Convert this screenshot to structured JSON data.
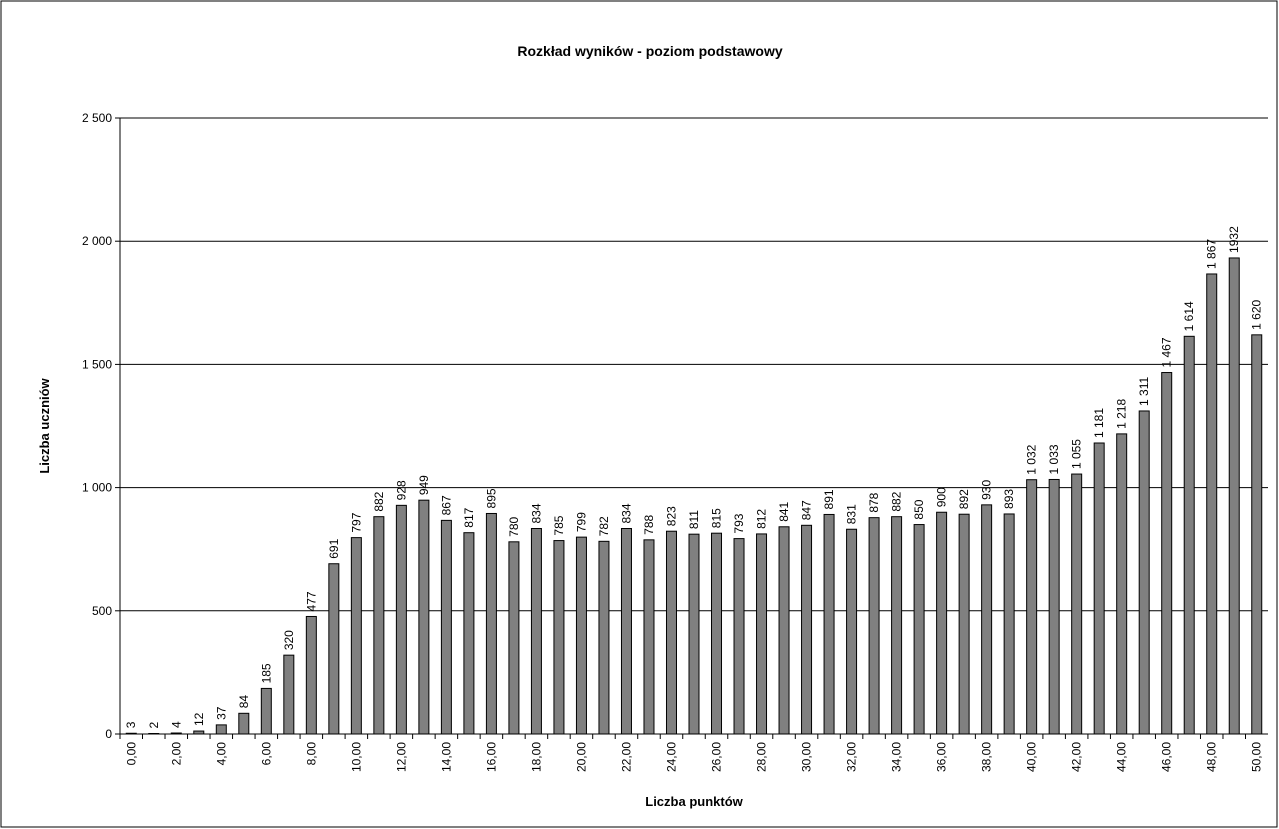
{
  "chart_data": {
    "type": "bar",
    "title": "Rozkład wyników - poziom  podstawowy",
    "x_label": "Liczba punktów",
    "y_label": "Liczba uczniów",
    "categories": [
      "0,00",
      null,
      "2,00",
      null,
      "4,00",
      null,
      "6,00",
      null,
      "8,00",
      null,
      "10,00",
      null,
      "12,00",
      null,
      "14,00",
      null,
      "16,00",
      null,
      "18,00",
      null,
      "20,00",
      null,
      "22,00",
      null,
      "24,00",
      null,
      "26,00",
      null,
      "28,00",
      null,
      "30,00",
      null,
      "32,00",
      null,
      "34,00",
      null,
      "36,00",
      null,
      "38,00",
      null,
      "40,00",
      null,
      "42,00",
      null,
      "44,00",
      null,
      "46,00",
      null,
      "48,00",
      null,
      "50,00"
    ],
    "values": [
      3,
      2,
      4,
      12,
      37,
      84,
      185,
      320,
      477,
      691,
      797,
      882,
      928,
      949,
      867,
      817,
      895,
      780,
      834,
      785,
      799,
      782,
      834,
      788,
      823,
      811,
      815,
      793,
      812,
      841,
      847,
      891,
      831,
      878,
      882,
      850,
      900,
      892,
      930,
      893,
      1032,
      1033,
      1055,
      1181,
      1218,
      1311,
      1467,
      1614,
      1867,
      1932,
      1620
    ],
    "value_labels": [
      "3",
      "2",
      "4",
      "12",
      "37",
      "84",
      "185",
      "320",
      "477",
      "691",
      "797",
      "882",
      "928",
      "949",
      "867",
      "817",
      "895",
      "780",
      "834",
      "785",
      "799",
      "782",
      "834",
      "788",
      "823",
      "811",
      "815",
      "793",
      "812",
      "841",
      "847",
      "891",
      "831",
      "878",
      "882",
      "850",
      "900",
      "892",
      "930",
      "893",
      "1 032",
      "1 033",
      "1 055",
      "1 181",
      "1 218",
      "1 311",
      "1 467",
      "1 614",
      "1 867",
      "1932",
      "1 620"
    ],
    "color": "#808080",
    "ylim": [
      0,
      2500
    ],
    "yticks": [
      0,
      500,
      {
        "value": 1000,
        "label": "1 000"
      },
      {
        "value": 1500,
        "label": "1 500"
      },
      {
        "value": 2000,
        "label": "2 000"
      },
      {
        "value": 2500,
        "label": "2 500"
      }
    ],
    "grid": true
  }
}
